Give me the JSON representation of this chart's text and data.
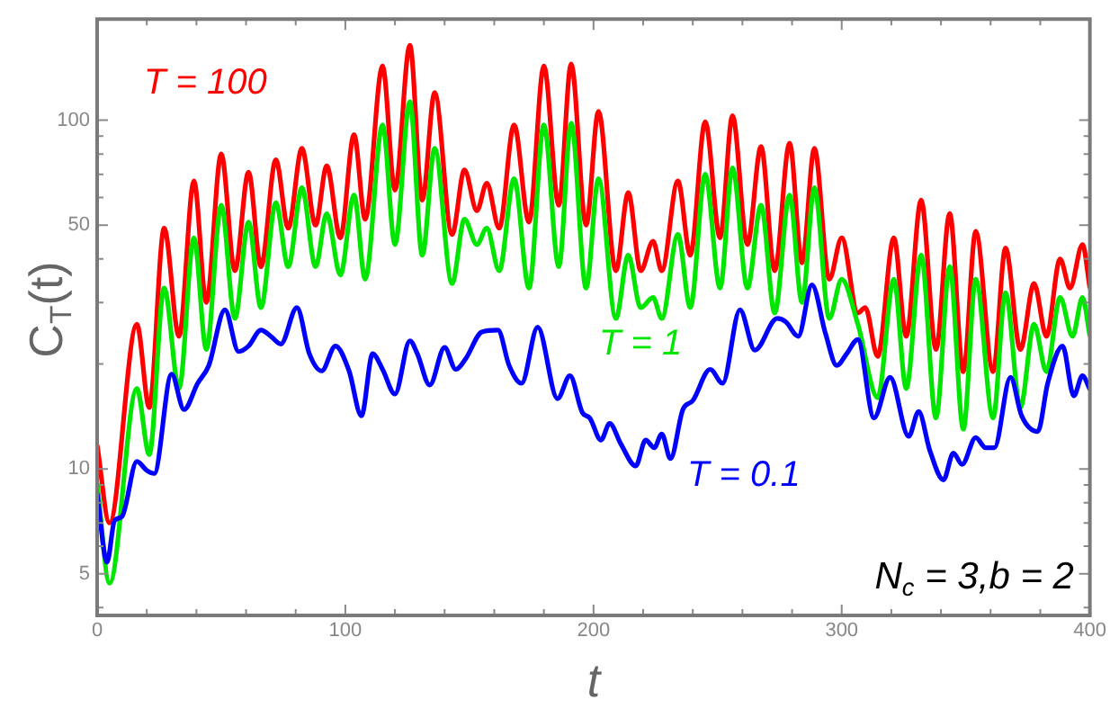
{
  "chart_data": {
    "type": "line",
    "xlabel": "t",
    "ylabel": "C$_{T}$(t)",
    "log": "y",
    "grid": false,
    "legend": false,
    "marker": "none",
    "line_style": "solid",
    "xlim": [
      0,
      400
    ],
    "ylim": [
      3.8,
      195
    ],
    "xticks": [
      0,
      {
        "value": 20,
        "label": null
      },
      {
        "value": 40,
        "label": null
      },
      {
        "value": 60,
        "label": null
      },
      {
        "value": 80,
        "label": null
      },
      100,
      {
        "value": 120,
        "label": null
      },
      {
        "value": 140,
        "label": null
      },
      {
        "value": 160,
        "label": null
      },
      {
        "value": 180,
        "label": null
      },
      200,
      {
        "value": 220,
        "label": null
      },
      {
        "value": 240,
        "label": null
      },
      {
        "value": 260,
        "label": null
      },
      {
        "value": 280,
        "label": null
      },
      300,
      {
        "value": 320,
        "label": null
      },
      {
        "value": 340,
        "label": null
      },
      {
        "value": 360,
        "label": null
      },
      {
        "value": 380,
        "label": null
      },
      400
    ],
    "yticks": [
      {
        "value": 4,
        "label": null
      },
      5,
      {
        "value": 6,
        "label": null
      },
      {
        "value": 7,
        "label": null
      },
      {
        "value": 8,
        "label": null
      },
      {
        "value": 9,
        "label": null
      },
      10,
      {
        "value": 20,
        "label": null
      },
      {
        "value": 30,
        "label": null
      },
      {
        "value": 40,
        "label": null
      },
      50,
      {
        "value": 60,
        "label": null
      },
      {
        "value": 70,
        "label": null
      },
      {
        "value": 80,
        "label": null
      },
      {
        "value": 90,
        "label": null
      },
      100
    ],
    "annotations": [
      "N$_{c}$ = 3,b = 2"
    ],
    "series": [
      {
        "name": "T = 100",
        "color": "#ff0000",
        "x": [
          0,
          5,
          16,
          21,
          27,
          33,
          39,
          44,
          50,
          55.5,
          61,
          66,
          72,
          77,
          82.5,
          88,
          92.5,
          98,
          103.5,
          108,
          115,
          120,
          126,
          131,
          136,
          143,
          148,
          153,
          157,
          162,
          168,
          174,
          180,
          186,
          191,
          197,
          202,
          209,
          214,
          219,
          224,
          227.5,
          234,
          239,
          245,
          251,
          256,
          262,
          267.5,
          273,
          279,
          284,
          289,
          295,
          300,
          306.5,
          309.5,
          314.5,
          321,
          326,
          332,
          338,
          343.5,
          349,
          354,
          361,
          366,
          372,
          377.5,
          382.5,
          388,
          392,
          397,
          400
        ],
        "values": [
          11.7,
          7,
          26,
          15,
          49,
          24,
          67,
          30,
          80,
          37,
          71,
          38,
          77,
          49,
          83,
          50,
          74,
          46,
          91,
          52,
          143,
          63,
          164,
          59,
          120,
          47,
          72,
          55,
          66,
          49,
          97,
          51,
          143,
          57,
          145,
          50,
          106,
          37,
          62,
          37,
          45,
          37,
          67,
          41,
          99,
          46,
          103,
          44,
          84,
          37,
          86,
          39,
          83,
          35,
          46,
          28,
          29,
          21,
          46,
          24,
          59,
          22,
          54,
          19,
          48,
          19,
          43,
          22,
          34,
          24,
          40,
          33,
          44,
          33
        ]
      },
      {
        "name": "T = 1",
        "color": "#00e600",
        "x": [
          0,
          5,
          16,
          21,
          27,
          33,
          39,
          44,
          50,
          55.5,
          61,
          66,
          72,
          77,
          82.5,
          88,
          92.5,
          98,
          103.5,
          108,
          115,
          120,
          126,
          131,
          136,
          143,
          148,
          153,
          157,
          162,
          168,
          174,
          180,
          186,
          191,
          197,
          202,
          209,
          214,
          219,
          224,
          227.5,
          234,
          239,
          245,
          251,
          256,
          262,
          267.5,
          273,
          279,
          284,
          289,
          295,
          300,
          306.5,
          314.5,
          321,
          326,
          332,
          338,
          343.5,
          349,
          354,
          361,
          366,
          372,
          377.5,
          382.5,
          388,
          393,
          397,
          400
        ],
        "values": [
          9.1,
          4.7,
          17,
          11,
          33,
          17,
          46,
          22,
          57,
          27,
          51,
          29,
          58,
          38,
          64,
          38,
          54,
          36,
          61,
          35,
          97,
          44,
          113,
          41,
          83,
          34,
          52,
          44,
          49,
          37,
          68,
          33,
          97,
          38,
          98,
          33,
          68,
          27,
          41,
          29,
          31,
          27,
          47,
          29,
          70,
          33,
          73,
          33,
          57,
          28,
          61,
          30,
          64,
          27,
          35,
          26,
          16,
          35,
          17,
          41,
          14,
          38,
          13,
          35,
          14,
          32,
          15,
          26,
          19,
          31,
          24,
          31,
          24
        ]
      },
      {
        "name": "T = 0.1",
        "color": "#0000ff",
        "x": [
          0,
          4,
          7,
          10,
          16,
          20,
          23,
          30,
          35,
          40.5,
          45,
          51.5,
          57,
          61,
          66,
          70,
          74,
          80.5,
          85.5,
          90.5,
          96,
          101.5,
          106.5,
          111,
          115,
          120,
          126,
          129,
          134,
          140,
          144.5,
          148.5,
          155,
          161.5,
          166,
          171,
          177.5,
          185.5,
          190.5,
          195.5,
          198.5,
          203,
          206.5,
          211,
          217,
          221,
          224.5,
          227.5,
          231,
          236,
          240,
          247,
          252,
          259,
          265,
          274,
          277.5,
          282.5,
          288,
          293.5,
          298,
          302,
          306.5,
          313,
          319.5,
          327,
          331,
          335.5,
          341,
          345,
          348.5,
          354,
          358,
          361.5,
          368,
          372.5,
          379,
          383,
          389,
          393.5,
          397,
          400
        ],
        "values": [
          8.5,
          5.4,
          7.1,
          7.3,
          10.5,
          9.9,
          9.7,
          18.7,
          14.8,
          17.6,
          19.8,
          28.6,
          21.7,
          22.5,
          25,
          24,
          22.8,
          29,
          21.4,
          19.1,
          22.5,
          19.1,
          14.2,
          21.4,
          19.3,
          16.4,
          23.3,
          21.4,
          17.4,
          22.3,
          19.3,
          20.7,
          24.7,
          25,
          19.8,
          17.6,
          25.5,
          15.9,
          18.5,
          14.5,
          14,
          12.1,
          13.5,
          11.8,
          10.2,
          12.1,
          11.5,
          12.6,
          10.7,
          14.8,
          15.7,
          19.3,
          17.6,
          28.6,
          21.9,
          27,
          26.4,
          24,
          33.7,
          24.4,
          19.8,
          21.4,
          23.5,
          14,
          18.3,
          12.4,
          14.6,
          11.3,
          9.3,
          11.1,
          10.3,
          12.3,
          11.5,
          11.5,
          18.3,
          14.2,
          12.8,
          17.6,
          22.5,
          16.2,
          18.5,
          16.9
        ]
      }
    ]
  }
}
